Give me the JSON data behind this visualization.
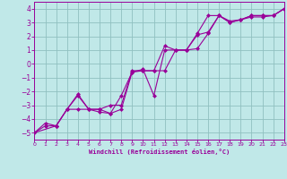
{
  "xlabel": "Windchill (Refroidissement éolien,°C)",
  "bg_color": "#c0e8e8",
  "grid_color": "#90c0c0",
  "line_color": "#990099",
  "xlim": [
    0,
    23
  ],
  "ylim": [
    -5.5,
    4.5
  ],
  "yticks": [
    -5,
    -4,
    -3,
    -2,
    -1,
    0,
    1,
    2,
    3,
    4
  ],
  "xticks": [
    0,
    1,
    2,
    3,
    4,
    5,
    6,
    7,
    8,
    9,
    10,
    11,
    12,
    13,
    14,
    15,
    16,
    17,
    18,
    19,
    20,
    21,
    22,
    23
  ],
  "line1_x": [
    0,
    1,
    2,
    3,
    4,
    5,
    6,
    7,
    8,
    9,
    10,
    11,
    12,
    13,
    14,
    15,
    16,
    17,
    18,
    19,
    20,
    21,
    22,
    23
  ],
  "line1_y": [
    -5.0,
    -4.5,
    -4.5,
    -3.3,
    -2.3,
    -3.3,
    -3.3,
    -3.6,
    -3.3,
    -0.6,
    -0.5,
    -0.5,
    1.3,
    1.0,
    1.0,
    2.2,
    3.5,
    3.5,
    3.0,
    3.2,
    3.5,
    3.5,
    3.5,
    4.0
  ],
  "line2_x": [
    0,
    1,
    2,
    3,
    4,
    5,
    6,
    7,
    8,
    9,
    10,
    11,
    12,
    13,
    14,
    15,
    16,
    17,
    18,
    19,
    20,
    21,
    22,
    23
  ],
  "line2_y": [
    -5.0,
    -4.3,
    -4.5,
    -3.3,
    -2.2,
    -3.3,
    -3.5,
    -3.6,
    -2.3,
    -0.6,
    -0.4,
    -2.3,
    1.0,
    1.0,
    1.0,
    2.1,
    2.3,
    3.5,
    3.0,
    3.2,
    3.4,
    3.4,
    3.5,
    4.0
  ],
  "line3_x": [
    0,
    2,
    3,
    4,
    5,
    6,
    7,
    8,
    9,
    10,
    11,
    12,
    13,
    14,
    15,
    16,
    17,
    18,
    19,
    20,
    21,
    22,
    23
  ],
  "line3_y": [
    -5.0,
    -4.5,
    -3.3,
    -3.3,
    -3.3,
    -3.3,
    -3.0,
    -3.0,
    -0.5,
    -0.5,
    -0.5,
    -0.5,
    1.0,
    1.0,
    1.1,
    2.2,
    3.5,
    3.1,
    3.2,
    3.5,
    3.5,
    3.5,
    4.0
  ]
}
